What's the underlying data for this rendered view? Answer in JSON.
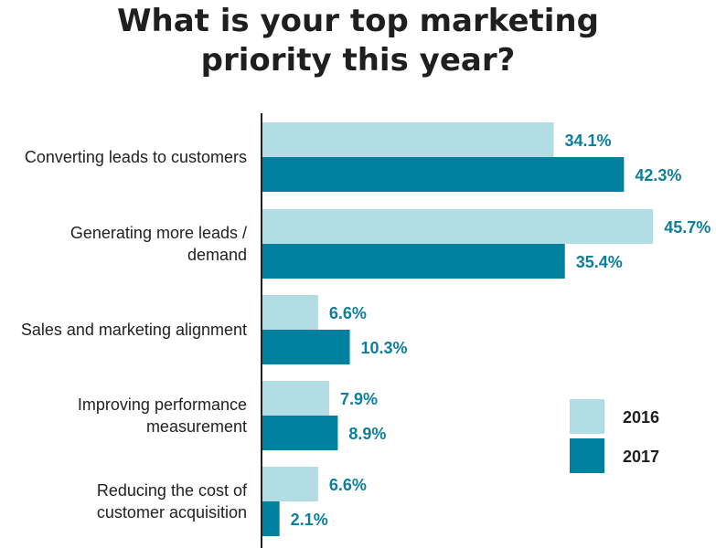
{
  "chart_data": {
    "type": "bar",
    "orientation": "horizontal",
    "title_lines": [
      "What is your top marketing",
      "priority this year?"
    ],
    "categories": [
      [
        "Converting leads to customers"
      ],
      [
        "Generating more leads /",
        "demand"
      ],
      [
        "Sales and marketing alignment"
      ],
      [
        "Improving performance",
        "measurement"
      ],
      [
        "Reducing the cost of",
        "customer acquisition"
      ]
    ],
    "series": [
      {
        "name": "2016",
        "color": "#b2dde4",
        "values": [
          34.1,
          45.7,
          6.6,
          7.9,
          6.6
        ],
        "labels": [
          "34.1%",
          "45.7%",
          "6.6%",
          "7.9%",
          "6.6%"
        ]
      },
      {
        "name": "2017",
        "color": "#00809f",
        "values": [
          42.3,
          35.4,
          10.3,
          8.9,
          2.1
        ],
        "labels": [
          "42.3%",
          "35.4%",
          "10.3%",
          "8.9%",
          "2.1%"
        ]
      }
    ],
    "xlim": [
      0,
      50
    ],
    "xaxis_visible": false,
    "grid": false,
    "legend_position": "right"
  }
}
